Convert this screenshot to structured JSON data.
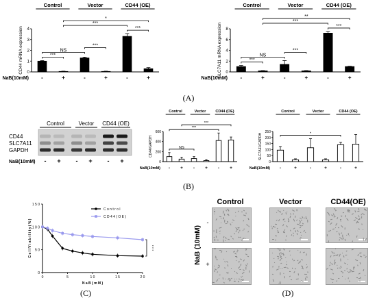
{
  "panels": {
    "A": "(A)",
    "B": "(B)",
    "C": "(C)",
    "D": "(D)"
  },
  "colors": {
    "bar": "#000000",
    "cd44_line": "#9999ee",
    "control_line": "#000000",
    "micro_bg": "#c8c8c8"
  },
  "chart_data": [
    {
      "id": "A1",
      "type": "bar",
      "groups": [
        "Control",
        "Vector",
        "CD44 (OE)"
      ],
      "treatment_label": "NaB(10mM)",
      "treatment_signs": [
        "-",
        "+",
        "-",
        "+",
        "-",
        "+"
      ],
      "values": [
        1.0,
        0.05,
        1.3,
        0.05,
        3.3,
        0.3
      ],
      "errors": [
        0.05,
        0.02,
        0.07,
        0.02,
        0.25,
        0.1
      ],
      "ylabel": "CD44 mRNA expression",
      "ylim": [
        0,
        4
      ],
      "yticks": [
        "0",
        "1",
        "2",
        "3",
        "4"
      ],
      "annotations": [
        {
          "from": 0,
          "to": 1,
          "text": "***"
        },
        {
          "from": 0,
          "to": 2,
          "text": "NS"
        },
        {
          "from": 2,
          "to": 3,
          "text": "***"
        },
        {
          "from": 4,
          "to": 5,
          "text": "***"
        },
        {
          "from": 1,
          "to": 4,
          "text": "***"
        },
        {
          "from": 1,
          "to": 5,
          "text": "*"
        }
      ]
    },
    {
      "id": "A2",
      "type": "bar",
      "groups": [
        "Control",
        "Vector",
        "CD44 (OE)"
      ],
      "treatment_label": "NaB(10mM)",
      "treatment_signs": [
        "-",
        "+",
        "-",
        "+",
        "-",
        "+"
      ],
      "values": [
        1.0,
        0.2,
        1.4,
        0.2,
        7.2,
        1.0
      ],
      "errors": [
        0.2,
        0.05,
        0.7,
        0.05,
        0.3,
        0.05
      ],
      "ylabel": "SLC7A11 mRNA expression",
      "ylim": [
        0,
        8
      ],
      "yticks": [
        "0",
        "2",
        "4",
        "6",
        "8"
      ],
      "annotations": [
        {
          "from": 0,
          "to": 1,
          "text": "***"
        },
        {
          "from": 0,
          "to": 2,
          "text": "NS"
        },
        {
          "from": 2,
          "to": 3,
          "text": "***"
        },
        {
          "from": 4,
          "to": 5,
          "text": "***"
        },
        {
          "from": 1,
          "to": 4,
          "text": "***"
        },
        {
          "from": 1,
          "to": 5,
          "text": "**"
        }
      ]
    },
    {
      "id": "B1",
      "type": "bar",
      "groups": [
        "Control",
        "Vector",
        "CD44 (OE)"
      ],
      "treatment_label": "NaB(10mM)",
      "treatment_signs": [
        "-",
        "+",
        "-",
        "+",
        "-",
        "+"
      ],
      "values": [
        100,
        50,
        60,
        20,
        420,
        430
      ],
      "errors": [
        80,
        40,
        40,
        20,
        150,
        60
      ],
      "ylabel": "CD44/GAPDH",
      "ylim": [
        0,
        600
      ],
      "yticks": [
        "0",
        "200",
        "400",
        "600"
      ],
      "annotations": [
        {
          "from": 0,
          "to": 2,
          "text": "NS"
        },
        {
          "from": 0,
          "to": 4,
          "text": "***"
        },
        {
          "from": 1,
          "to": 5,
          "text": "***"
        }
      ]
    },
    {
      "id": "B2",
      "type": "bar",
      "groups": [
        "Control",
        "Vector",
        "CD44 (OE)"
      ],
      "treatment_label": "NaB(10mM)",
      "treatment_signs": [
        "-",
        "+",
        "-",
        "+",
        "-",
        "+"
      ],
      "values": [
        95,
        15,
        115,
        15,
        140,
        145
      ],
      "errors": [
        30,
        8,
        75,
        8,
        20,
        80
      ],
      "ylabel": "SLC7A11/GAPDH",
      "ylim": [
        0,
        250
      ],
      "yticks": [
        "0",
        "50",
        "100",
        "150",
        "200",
        "250"
      ],
      "annotations": [
        {
          "from": 0,
          "to": 4,
          "text": "*"
        }
      ]
    },
    {
      "id": "C",
      "type": "line",
      "x": [
        0,
        1,
        2,
        4,
        6,
        8,
        10,
        15,
        20
      ],
      "series": [
        {
          "name": "C o n t r o l",
          "values": [
            100,
            95,
            80,
            53,
            47,
            43,
            40,
            37,
            36
          ]
        },
        {
          "name": "C D 4 4   ( O E )",
          "values": [
            100,
            97,
            92,
            86,
            83,
            81,
            79,
            76,
            72
          ]
        }
      ],
      "xlabel": "N a B  ( m M )",
      "ylabel": "C e l l  V i a b i l i t y  ( % )",
      "xlim": [
        0,
        20
      ],
      "ylim": [
        0,
        150
      ],
      "xticks": [
        "0",
        "5",
        "1 0",
        "1 5",
        "2 0"
      ],
      "yticks": [
        "0",
        "5 0",
        "1 0 0",
        "1 5 0"
      ],
      "significance": "* * *",
      "legend_position": "top-right"
    }
  ],
  "blot": {
    "groups": [
      "Control",
      "Vector",
      "CD44 (OE)"
    ],
    "proteins": [
      "CD44",
      "SLC7A11",
      "GAPDH"
    ],
    "treatment_label": "NaB(10mM)",
    "treatment_signs": [
      "-",
      "+",
      "-",
      "+",
      "-",
      "+"
    ]
  },
  "micro": {
    "columns": [
      "Control",
      "Vector",
      "CD44(OE)"
    ],
    "row_label": "NaB  (10mM)",
    "rows": [
      "-",
      "+"
    ]
  }
}
